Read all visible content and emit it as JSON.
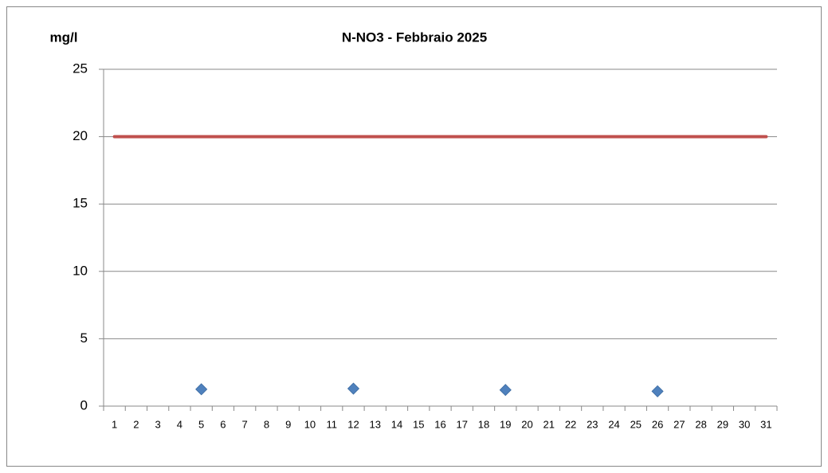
{
  "chart_data": {
    "type": "line",
    "title": "N-NO3 - Febbraio 2025",
    "y_label": "mg/l",
    "categories": [
      "1",
      "2",
      "3",
      "4",
      "5",
      "6",
      "7",
      "8",
      "9",
      "10",
      "11",
      "12",
      "13",
      "14",
      "15",
      "16",
      "17",
      "18",
      "19",
      "20",
      "21",
      "22",
      "23",
      "24",
      "25",
      "26",
      "27",
      "28",
      "29",
      "30",
      "31"
    ],
    "series": [
      {
        "color": "#c0504d",
        "style": "line",
        "values": [
          20,
          20,
          20,
          20,
          20,
          20,
          20,
          20,
          20,
          20,
          20,
          20,
          20,
          20,
          20,
          20,
          20,
          20,
          20,
          20,
          20,
          20,
          20,
          20,
          20,
          20,
          20,
          20,
          20,
          20,
          20
        ]
      },
      {
        "color": "#4f81bd",
        "style": "marker",
        "marker": "diamond",
        "values": [
          null,
          null,
          null,
          null,
          1.25,
          null,
          null,
          null,
          null,
          null,
          null,
          1.3,
          null,
          null,
          null,
          null,
          null,
          null,
          1.2,
          null,
          null,
          null,
          null,
          null,
          null,
          1.1,
          null,
          null,
          null,
          null,
          null
        ]
      }
    ],
    "ylim": [
      0,
      25
    ],
    "yticks": [
      0,
      5,
      10,
      15,
      20,
      25
    ],
    "grid": true
  }
}
